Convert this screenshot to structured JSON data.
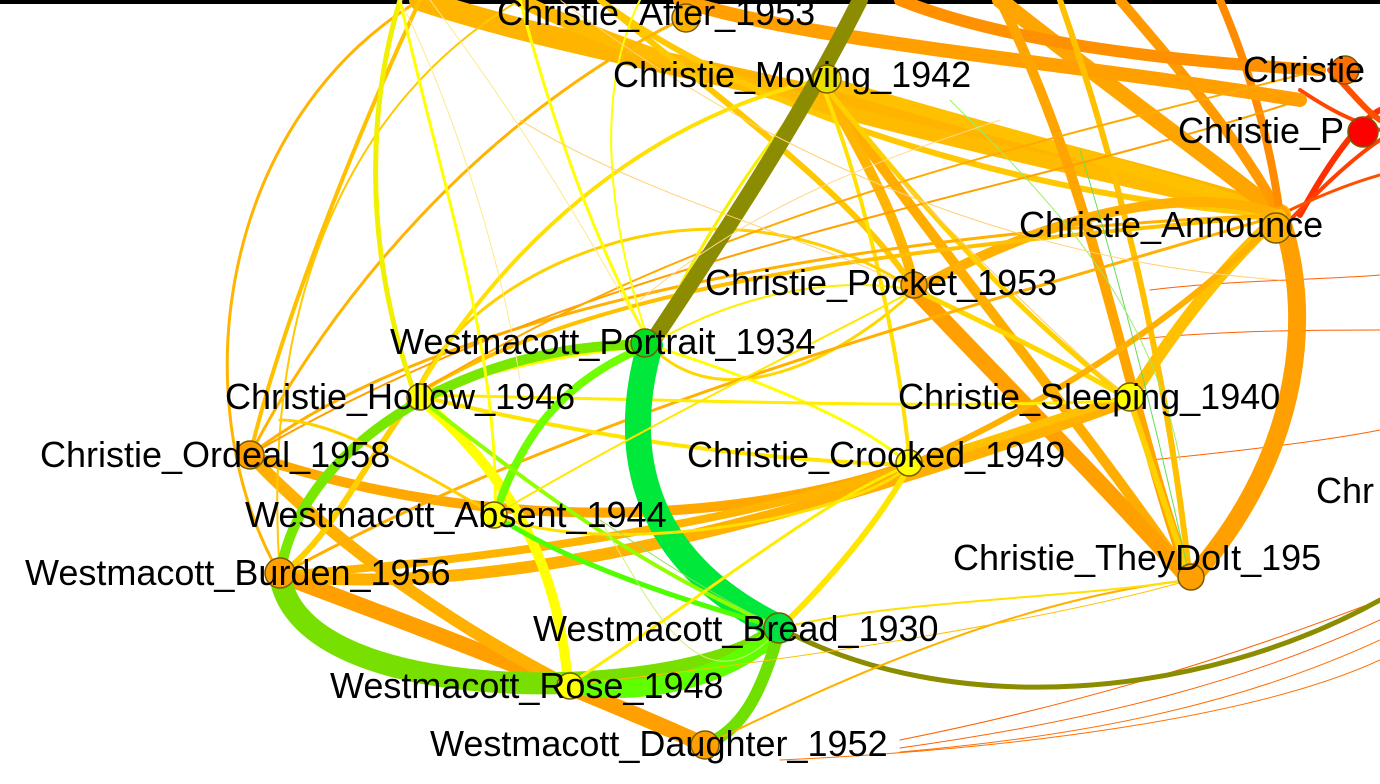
{
  "graph": {
    "nodes": [
      {
        "id": "after",
        "label": "Christie_After_1953",
        "color": "#ffb400"
      },
      {
        "id": "moving",
        "label": "Christie_Moving_1942",
        "color": "#e8e000"
      },
      {
        "id": "christie_top_right",
        "label": "Christie",
        "color": "#ff7000"
      },
      {
        "id": "christie_p",
        "label": "Christie_P",
        "color": "#ff0000"
      },
      {
        "id": "announce",
        "label": "Christie_Announce",
        "color": "#ffb000"
      },
      {
        "id": "pocket",
        "label": "Christie_Pocket_1953",
        "color": "#ffa000"
      },
      {
        "id": "portrait",
        "label": "Westmacott_Portrait_1934",
        "color": "#00e020"
      },
      {
        "id": "hollow",
        "label": "Christie_Hollow_1946",
        "color": "#ffff00"
      },
      {
        "id": "sleeping",
        "label": "Christie_Sleeping_1940",
        "color": "#ffff00"
      },
      {
        "id": "ordeal",
        "label": "Christie_Ordeal_1958",
        "color": "#ffa000"
      },
      {
        "id": "crooked",
        "label": "Christie_Crooked_1949",
        "color": "#ffff00"
      },
      {
        "id": "chr_right",
        "label": "Chr",
        "color": "#ffa000"
      },
      {
        "id": "absent",
        "label": "Westmacott_Absent_1944",
        "color": "#ffff00"
      },
      {
        "id": "burden",
        "label": "Westmacott_Burden_1956",
        "color": "#ffa000"
      },
      {
        "id": "theydoit",
        "label": "Christie_TheyDoIt_195",
        "color": "#ffa000"
      },
      {
        "id": "bread",
        "label": "Westmacott_Bread_1930",
        "color": "#00e040"
      },
      {
        "id": "rose",
        "label": "Westmacott_Rose_1948",
        "color": "#ffff00"
      },
      {
        "id": "daughter",
        "label": "Westmacott_Daughter_1952",
        "color": "#ffa000"
      }
    ]
  }
}
